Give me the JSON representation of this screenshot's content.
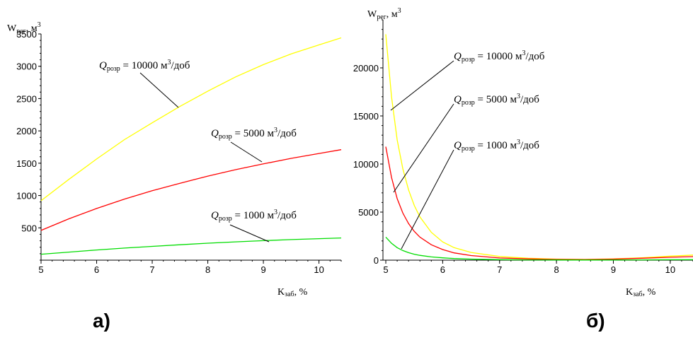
{
  "chart_data": [
    {
      "panel": "а)",
      "type": "line",
      "xlabel": "K",
      "xlabel_sub": "заб",
      "xlabel_unit": ", %",
      "ylabel": "W",
      "ylabel_sub": "рег",
      "ylabel_unit": ", м",
      "ylabel_sup": "3",
      "xlim": [
        5,
        10.4
      ],
      "ylim": [
        0,
        3500
      ],
      "x_ticks": [
        "5",
        "6",
        "7",
        "8",
        "9",
        "10"
      ],
      "y_ticks": [
        "500",
        "1000",
        "1500",
        "2000",
        "2500",
        "3000",
        "3500"
      ],
      "series": [
        {
          "color": "#ffff00",
          "label": {
            "q": "Q",
            "sub": "розр",
            "value": " = 10000 м",
            "sup": "3",
            "unit": "/доб"
          },
          "x": [
            5.0,
            5.5,
            6.0,
            6.5,
            7.0,
            7.5,
            8.0,
            8.5,
            9.0,
            9.5,
            10.0,
            10.4
          ],
          "y": [
            920,
            1250,
            1565,
            1865,
            2125,
            2380,
            2615,
            2835,
            3025,
            3190,
            3330,
            3440
          ]
        },
        {
          "color": "#ff0000",
          "label": {
            "q": "Q",
            "sub": "розр",
            "value": " = 5000 м",
            "sup": "3",
            "unit": "/доб"
          },
          "x": [
            5.0,
            5.5,
            6.0,
            6.5,
            7.0,
            7.5,
            8.0,
            8.5,
            9.0,
            9.5,
            10.0,
            10.4
          ],
          "y": [
            460,
            640,
            800,
            945,
            1075,
            1190,
            1300,
            1400,
            1490,
            1575,
            1650,
            1710
          ]
        },
        {
          "color": "#00dd00",
          "label": {
            "q": "Q",
            "sub": "розр",
            "value": " = 1000 м",
            "sup": "3",
            "unit": "/доб"
          },
          "x": [
            5.0,
            5.5,
            6.0,
            6.5,
            7.0,
            7.5,
            8.0,
            8.5,
            9.0,
            9.5,
            10.0,
            10.4
          ],
          "y": [
            92,
            125,
            157,
            187,
            213,
            238,
            262,
            283,
            302,
            318,
            332,
            343
          ]
        }
      ]
    },
    {
      "panel": "б)",
      "type": "line",
      "xlabel": "K",
      "xlabel_sub": "заб",
      "xlabel_unit": ", %",
      "ylabel": "W",
      "ylabel_sub": "рег",
      "ylabel_unit": ", м",
      "ylabel_sup": "3",
      "xlim": [
        4.95,
        10.4
      ],
      "ylim": [
        0,
        25000
      ],
      "x_ticks": [
        "5",
        "6",
        "7",
        "8",
        "9",
        "10"
      ],
      "y_ticks": [
        "0",
        "5000",
        "10000",
        "15000",
        "20000"
      ],
      "series": [
        {
          "color": "#ffff00",
          "label": {
            "q": "Q",
            "sub": "розр",
            "value": " = 10000 м",
            "sup": "3",
            "unit": "/доб"
          },
          "x": [
            5.0,
            5.1,
            5.2,
            5.3,
            5.4,
            5.5,
            5.6,
            5.8,
            6.0,
            6.2,
            6.5,
            7.0,
            7.5,
            8.0,
            8.5,
            9.0,
            9.5,
            10.0,
            10.4
          ],
          "y": [
            23500,
            17000,
            12500,
            9500,
            7300,
            5700,
            4500,
            2900,
            1900,
            1300,
            800,
            380,
            200,
            110,
            80,
            130,
            250,
            420,
            530
          ]
        },
        {
          "color": "#ff0000",
          "label": {
            "q": "Q",
            "sub": "розр",
            "value": " = 5000 м",
            "sup": "3",
            "unit": "/доб"
          },
          "x": [
            5.0,
            5.1,
            5.2,
            5.3,
            5.4,
            5.5,
            5.6,
            5.8,
            6.0,
            6.2,
            6.5,
            7.0,
            7.5,
            8.0,
            8.5,
            9.0,
            9.5,
            10.0,
            10.4
          ],
          "y": [
            11800,
            8600,
            6400,
            4900,
            3800,
            3000,
            2400,
            1600,
            1100,
            760,
            480,
            230,
            130,
            80,
            60,
            110,
            200,
            300,
            370
          ]
        },
        {
          "color": "#00dd00",
          "label": {
            "q": "Q",
            "sub": "розр",
            "value": " = 1000 м",
            "sup": "3",
            "unit": "/доб"
          },
          "x": [
            5.0,
            5.1,
            5.2,
            5.3,
            5.4,
            5.5,
            5.6,
            5.8,
            6.0,
            6.2,
            6.5,
            7.0,
            7.5,
            8.0,
            8.5,
            9.0,
            9.5,
            10.0,
            10.4
          ],
          "y": [
            2400,
            1750,
            1300,
            1000,
            780,
            620,
            500,
            340,
            240,
            170,
            110,
            55,
            30,
            20,
            15,
            20,
            30,
            45,
            55
          ]
        }
      ]
    }
  ]
}
